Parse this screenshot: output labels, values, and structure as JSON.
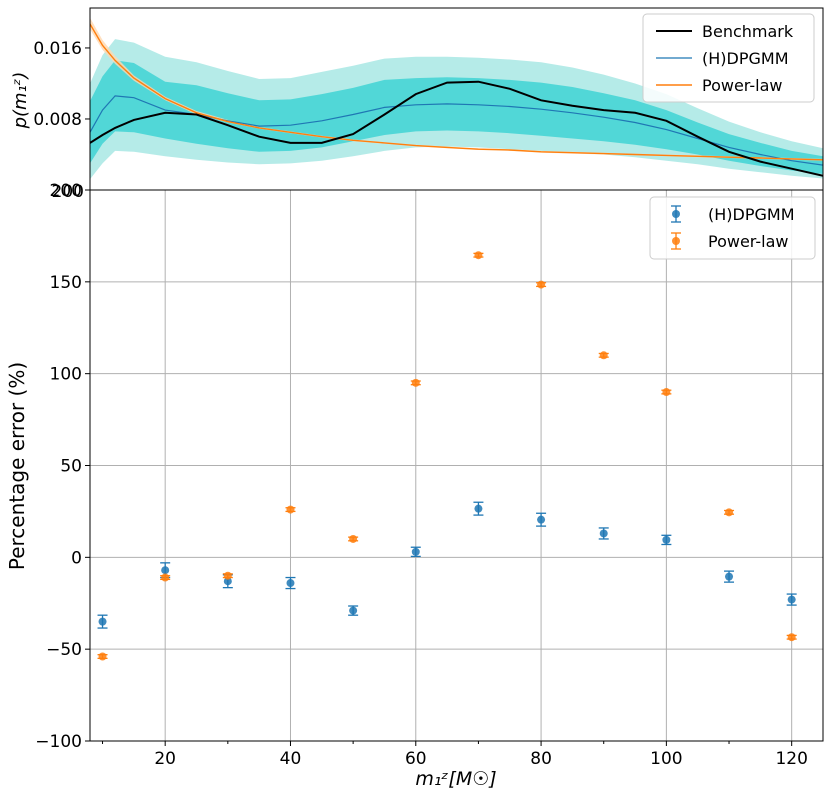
{
  "chart_data": [
    {
      "type": "line",
      "panel": "top",
      "xlabel": "",
      "ylabel": "p(m₁ᶻ)",
      "xlim": [
        8,
        125
      ],
      "ylim": [
        0,
        0.0205
      ],
      "yticks": [
        0.008,
        0.016
      ],
      "ytick_labels": [
        "0.008",
        "0.016"
      ],
      "corner_label": "200",
      "legend_position": "top-right",
      "colors": {
        "benchmark": "#000000",
        "dpgmm": "#1f77b4",
        "powerlaw": "#ff7f0e",
        "band_inner": "#40d4d4",
        "band_outer": "#a8e8e4"
      },
      "x": [
        8,
        10,
        12,
        15,
        20,
        25,
        30,
        35,
        40,
        45,
        50,
        55,
        60,
        65,
        70,
        75,
        80,
        85,
        90,
        95,
        100,
        105,
        110,
        115,
        120,
        125
      ],
      "series": [
        {
          "name": "Benchmark",
          "values": [
            0.0053,
            0.0062,
            0.007,
            0.0079,
            0.0087,
            0.0085,
            0.0073,
            0.006,
            0.0053,
            0.0053,
            0.0063,
            0.0085,
            0.0108,
            0.0121,
            0.0122,
            0.0114,
            0.0101,
            0.0095,
            0.009,
            0.0087,
            0.0078,
            0.006,
            0.0043,
            0.0032,
            0.0024,
            0.0016
          ]
        },
        {
          "name": "(H)DPGMM",
          "values": [
            0.0065,
            0.009,
            0.0106,
            0.0104,
            0.009,
            0.0085,
            0.0078,
            0.0072,
            0.0073,
            0.0078,
            0.0085,
            0.0093,
            0.0096,
            0.0097,
            0.0096,
            0.0094,
            0.0091,
            0.0087,
            0.0082,
            0.0076,
            0.0068,
            0.0058,
            0.0048,
            0.004,
            0.0033,
            0.0028
          ]
        },
        {
          "name": "Power-law",
          "values": [
            0.0187,
            0.0163,
            0.0146,
            0.0126,
            0.0103,
            0.0087,
            0.0077,
            0.007,
            0.0065,
            0.006,
            0.0056,
            0.0053,
            0.005,
            0.0048,
            0.0046,
            0.0045,
            0.0043,
            0.0042,
            0.0041,
            0.004,
            0.0039,
            0.0038,
            0.0037,
            0.0036,
            0.0035,
            0.0034
          ]
        }
      ],
      "dpgmm_band_inner": {
        "lower": [
          0.003,
          0.0052,
          0.0066,
          0.0065,
          0.0058,
          0.0052,
          0.0047,
          0.0043,
          0.0044,
          0.0048,
          0.0055,
          0.0062,
          0.0066,
          0.0067,
          0.0066,
          0.0064,
          0.0061,
          0.0058,
          0.0055,
          0.0051,
          0.0046,
          0.004,
          0.0033,
          0.0027,
          0.0022,
          0.0018
        ],
        "upper": [
          0.01,
          0.0128,
          0.0146,
          0.0143,
          0.0122,
          0.0118,
          0.0109,
          0.0101,
          0.0102,
          0.0108,
          0.0115,
          0.0124,
          0.0126,
          0.0127,
          0.0126,
          0.0124,
          0.0121,
          0.0116,
          0.0109,
          0.0101,
          0.009,
          0.0076,
          0.0063,
          0.0053,
          0.0044,
          0.0038
        ]
      },
      "dpgmm_band_outer": {
        "lower": [
          0.0012,
          0.003,
          0.0044,
          0.0043,
          0.0038,
          0.0034,
          0.0031,
          0.0029,
          0.003,
          0.0033,
          0.0038,
          0.0044,
          0.0048,
          0.0049,
          0.0048,
          0.0046,
          0.0044,
          0.0042,
          0.004,
          0.0037,
          0.0033,
          0.0029,
          0.0024,
          0.002,
          0.0016,
          0.0013
        ],
        "upper": [
          0.012,
          0.0152,
          0.017,
          0.0166,
          0.015,
          0.0144,
          0.0134,
          0.0125,
          0.0126,
          0.0133,
          0.014,
          0.0148,
          0.015,
          0.015,
          0.0149,
          0.0147,
          0.0144,
          0.0138,
          0.013,
          0.012,
          0.0108,
          0.0092,
          0.0077,
          0.0065,
          0.0055,
          0.0047
        ]
      },
      "powerlaw_band": {
        "lower": [
          0.0181,
          0.0158,
          0.0142,
          0.0123,
          0.0101,
          0.0085,
          0.0076,
          0.0069,
          0.0064,
          0.0059,
          0.0055,
          0.0052,
          0.0049,
          0.0047,
          0.0045,
          0.0044,
          0.0042,
          0.0041,
          0.004,
          0.0039,
          0.0038,
          0.0037,
          0.0036,
          0.0035,
          0.0034,
          0.0033
        ],
        "upper": [
          0.0194,
          0.0169,
          0.0151,
          0.0129,
          0.0105,
          0.0089,
          0.0079,
          0.0071,
          0.0066,
          0.0061,
          0.0057,
          0.0054,
          0.0051,
          0.0049,
          0.0047,
          0.0046,
          0.0044,
          0.0043,
          0.0042,
          0.0041,
          0.004,
          0.0039,
          0.0038,
          0.0037,
          0.0036,
          0.0035
        ]
      },
      "legend": [
        "Benchmark",
        "(H)DPGMM",
        "Power-law"
      ]
    },
    {
      "type": "scatter",
      "panel": "bottom",
      "xlabel": "m₁ᶻ[M☉]",
      "ylabel": "Percentage error (%)",
      "xlim": [
        8,
        125
      ],
      "ylim": [
        -100,
        200
      ],
      "xticks": [
        20,
        40,
        60,
        80,
        100,
        120
      ],
      "yticks": [
        -100,
        -50,
        0,
        50,
        100,
        150,
        200
      ],
      "ytick_labels": [
        "−100",
        "−50",
        "0",
        "50",
        "100",
        "150",
        "200"
      ],
      "grid": true,
      "legend_position": "top-right",
      "colors": {
        "dpgmm": "#1f77b4",
        "powerlaw": "#ff7f0e"
      },
      "x": [
        10,
        20,
        30,
        40,
        50,
        60,
        70,
        80,
        90,
        100,
        110,
        120
      ],
      "series": [
        {
          "name": "(H)DPGMM",
          "values": [
            -35,
            -7,
            -13,
            -14,
            -29,
            3,
            26.5,
            20.5,
            13,
            9.5,
            -10.5,
            -23
          ],
          "errors": [
            3.5,
            4,
            3.5,
            3,
            2.5,
            2.5,
            3.5,
            3.5,
            3,
            2.5,
            3,
            3
          ]
        },
        {
          "name": "Power-law",
          "values": [
            -54,
            -11,
            -10,
            26,
            10,
            95,
            164.5,
            148.5,
            110,
            90,
            24.5,
            -43.5
          ],
          "errors": [
            1,
            1,
            1,
            1,
            1,
            1,
            1,
            1,
            1,
            1,
            1,
            1
          ]
        }
      ],
      "legend": [
        "(H)DPGMM",
        "Power-law"
      ]
    }
  ]
}
